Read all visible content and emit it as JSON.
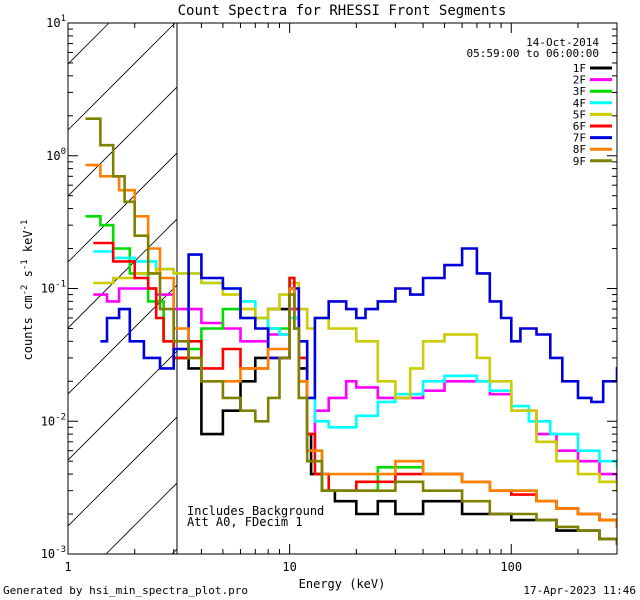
{
  "chart_data": {
    "type": "line",
    "title": "Count Spectra for RHESSI Front Segments",
    "xlabel": "Energy (keV)",
    "ylabel": "counts cm-2 s-1 keV-1",
    "xscale": "log",
    "yscale": "log",
    "xlim": [
      1,
      300
    ],
    "ylim": [
      0.001,
      10
    ],
    "x_tick_labels": [
      "1",
      "10",
      "100"
    ],
    "y_tick_labels": [
      {
        "base": "10",
        "exp": "-3"
      },
      {
        "base": "10",
        "exp": "-2"
      },
      {
        "base": "10",
        "exp": "-1"
      },
      {
        "base": "10",
        "exp": "0"
      },
      {
        "base": "10",
        "exp": "1"
      }
    ],
    "date_label": "14-Oct-2014",
    "time_range_label": "05:59:00 to 06:00:00",
    "excluded_region": {
      "from": 1,
      "to": 3,
      "description": "hatched"
    },
    "notes": [
      "Includes Background",
      "Att A0, FDecim 1"
    ],
    "series": [
      {
        "name": "1F",
        "color": "#000000",
        "points": [
          [
            3,
            0.03
          ],
          [
            3.5,
            0.025
          ],
          [
            4,
            0.008
          ],
          [
            5,
            0.012
          ],
          [
            6,
            0.02
          ],
          [
            7,
            0.03
          ],
          [
            8,
            0.07
          ],
          [
            10,
            0.1
          ],
          [
            10.5,
            0.06
          ],
          [
            11,
            0.025
          ],
          [
            12,
            0.008
          ],
          [
            12.5,
            0.004
          ],
          [
            14,
            0.003
          ],
          [
            16,
            0.0025
          ],
          [
            20,
            0.002
          ],
          [
            25,
            0.0025
          ],
          [
            30,
            0.002
          ],
          [
            40,
            0.0025
          ],
          [
            60,
            0.002
          ],
          [
            80,
            0.002
          ],
          [
            100,
            0.0018
          ],
          [
            130,
            0.0018
          ],
          [
            160,
            0.0015
          ],
          [
            200,
            0.0015
          ],
          [
            250,
            0.0013
          ],
          [
            300,
            0.0012
          ]
        ]
      },
      {
        "name": "2F",
        "color": "#ff00ff",
        "points": [
          [
            1.3,
            0.09
          ],
          [
            1.5,
            0.08
          ],
          [
            1.7,
            0.1
          ],
          [
            2,
            0.1
          ],
          [
            2.5,
            0.09
          ],
          [
            3,
            0.07
          ],
          [
            4,
            0.055
          ],
          [
            5,
            0.05
          ],
          [
            6,
            0.04
          ],
          [
            8,
            0.045
          ],
          [
            10,
            0.07
          ],
          [
            11,
            0.02
          ],
          [
            12,
            0.006
          ],
          [
            13,
            0.012
          ],
          [
            15,
            0.015
          ],
          [
            18,
            0.02
          ],
          [
            20,
            0.018
          ],
          [
            25,
            0.015
          ],
          [
            30,
            0.015
          ],
          [
            40,
            0.017
          ],
          [
            50,
            0.02
          ],
          [
            60,
            0.02
          ],
          [
            80,
            0.016
          ],
          [
            100,
            0.012
          ],
          [
            130,
            0.008
          ],
          [
            160,
            0.006
          ],
          [
            200,
            0.005
          ],
          [
            250,
            0.004
          ],
          [
            300,
            0.0035
          ]
        ]
      },
      {
        "name": "3F",
        "color": "#00dd00",
        "points": [
          [
            1.2,
            0.35
          ],
          [
            1.4,
            0.3
          ],
          [
            1.6,
            0.2
          ],
          [
            1.9,
            0.13
          ],
          [
            2.3,
            0.08
          ],
          [
            2.7,
            0.04
          ],
          [
            3,
            0.03
          ],
          [
            3.5,
            0.035
          ],
          [
            4,
            0.05
          ],
          [
            5,
            0.07
          ],
          [
            6,
            0.06
          ],
          [
            8,
            0.05
          ],
          [
            10,
            0.12
          ],
          [
            10.5,
            0.05
          ],
          [
            11,
            0.02
          ],
          [
            12,
            0.006
          ],
          [
            14,
            0.003
          ],
          [
            20,
            0.003
          ],
          [
            25,
            0.0045
          ],
          [
            40,
            0.004
          ],
          [
            60,
            0.0035
          ],
          [
            80,
            0.003
          ],
          [
            100,
            0.003
          ],
          [
            130,
            0.0025
          ],
          [
            160,
            0.0022
          ],
          [
            200,
            0.002
          ],
          [
            250,
            0.0018
          ],
          [
            300,
            0.0016
          ]
        ]
      },
      {
        "name": "4F",
        "color": "#00ffff",
        "points": [
          [
            1.3,
            0.19
          ],
          [
            1.6,
            0.17
          ],
          [
            2,
            0.16
          ],
          [
            2.5,
            0.14
          ],
          [
            3,
            0.13
          ],
          [
            4,
            0.11
          ],
          [
            5,
            0.1
          ],
          [
            6,
            0.08
          ],
          [
            7,
            0.06
          ],
          [
            8,
            0.05
          ],
          [
            9,
            0.045
          ],
          [
            10,
            0.06
          ],
          [
            11,
            0.03
          ],
          [
            12,
            0.015
          ],
          [
            13,
            0.01
          ],
          [
            15,
            0.009
          ],
          [
            20,
            0.011
          ],
          [
            25,
            0.014
          ],
          [
            30,
            0.016
          ],
          [
            40,
            0.02
          ],
          [
            50,
            0.022
          ],
          [
            60,
            0.022
          ],
          [
            70,
            0.02
          ],
          [
            80,
            0.017
          ],
          [
            100,
            0.013
          ],
          [
            120,
            0.01
          ],
          [
            150,
            0.008
          ],
          [
            200,
            0.006
          ],
          [
            250,
            0.005
          ],
          [
            300,
            0.0045
          ]
        ]
      },
      {
        "name": "5F",
        "color": "#cccc00",
        "points": [
          [
            1.3,
            0.11
          ],
          [
            1.6,
            0.12
          ],
          [
            2,
            0.13
          ],
          [
            2.5,
            0.14
          ],
          [
            3,
            0.13
          ],
          [
            4,
            0.11
          ],
          [
            5,
            0.09
          ],
          [
            6,
            0.07
          ],
          [
            7,
            0.06
          ],
          [
            8,
            0.07
          ],
          [
            9,
            0.09
          ],
          [
            10,
            0.11
          ],
          [
            11,
            0.07
          ],
          [
            12,
            0.05
          ],
          [
            13,
            0.06
          ],
          [
            15,
            0.05
          ],
          [
            18,
            0.05
          ],
          [
            20,
            0.04
          ],
          [
            25,
            0.02
          ],
          [
            30,
            0.015
          ],
          [
            35,
            0.025
          ],
          [
            40,
            0.04
          ],
          [
            50,
            0.045
          ],
          [
            60,
            0.045
          ],
          [
            70,
            0.03
          ],
          [
            80,
            0.02
          ],
          [
            100,
            0.012
          ],
          [
            130,
            0.007
          ],
          [
            160,
            0.005
          ],
          [
            200,
            0.004
          ],
          [
            250,
            0.0035
          ],
          [
            300,
            0.003
          ]
        ]
      },
      {
        "name": "6F",
        "color": "#ff0000",
        "points": [
          [
            1.3,
            0.22
          ],
          [
            1.6,
            0.16
          ],
          [
            2,
            0.12
          ],
          [
            2.3,
            0.1
          ],
          [
            2.5,
            0.06
          ],
          [
            2.7,
            0.04
          ],
          [
            3,
            0.03
          ],
          [
            3.5,
            0.04
          ],
          [
            4,
            0.025
          ],
          [
            5,
            0.035
          ],
          [
            6,
            0.025
          ],
          [
            8,
            0.03
          ],
          [
            10,
            0.12
          ],
          [
            10.5,
            0.07
          ],
          [
            11,
            0.03
          ],
          [
            12,
            0.008
          ],
          [
            13,
            0.004
          ],
          [
            15,
            0.003
          ],
          [
            20,
            0.0035
          ],
          [
            30,
            0.004
          ],
          [
            40,
            0.004
          ],
          [
            60,
            0.0035
          ],
          [
            80,
            0.003
          ],
          [
            100,
            0.0028
          ],
          [
            130,
            0.0025
          ],
          [
            160,
            0.0022
          ],
          [
            200,
            0.002
          ],
          [
            250,
            0.0018
          ],
          [
            300,
            0.0016
          ]
        ]
      },
      {
        "name": "7F",
        "color": "#0000dd",
        "points": [
          [
            1.4,
            0.04
          ],
          [
            1.5,
            0.06
          ],
          [
            1.7,
            0.07
          ],
          [
            1.9,
            0.04
          ],
          [
            2.2,
            0.03
          ],
          [
            2.6,
            0.025
          ],
          [
            3,
            0.035
          ],
          [
            3.5,
            0.18
          ],
          [
            4,
            0.12
          ],
          [
            5,
            0.1
          ],
          [
            6,
            0.06
          ],
          [
            7,
            0.05
          ],
          [
            8,
            0.03
          ],
          [
            10,
            0.1
          ],
          [
            11,
            0.04
          ],
          [
            12,
            0.015
          ],
          [
            13,
            0.06
          ],
          [
            15,
            0.08
          ],
          [
            18,
            0.07
          ],
          [
            20,
            0.06
          ],
          [
            22,
            0.07
          ],
          [
            25,
            0.08
          ],
          [
            30,
            0.1
          ],
          [
            35,
            0.09
          ],
          [
            40,
            0.12
          ],
          [
            50,
            0.15
          ],
          [
            60,
            0.2
          ],
          [
            70,
            0.13
          ],
          [
            80,
            0.08
          ],
          [
            90,
            0.06
          ],
          [
            100,
            0.04
          ],
          [
            110,
            0.05
          ],
          [
            130,
            0.045
          ],
          [
            150,
            0.03
          ],
          [
            170,
            0.02
          ],
          [
            200,
            0.015
          ],
          [
            230,
            0.014
          ],
          [
            260,
            0.02
          ],
          [
            300,
            0.025
          ]
        ]
      },
      {
        "name": "8F",
        "color": "#ff8000",
        "points": [
          [
            1.2,
            0.85
          ],
          [
            1.4,
            0.7
          ],
          [
            1.7,
            0.55
          ],
          [
            2,
            0.35
          ],
          [
            2.3,
            0.2
          ],
          [
            2.6,
            0.12
          ],
          [
            3,
            0.05
          ],
          [
            3.5,
            0.03
          ],
          [
            4,
            0.02
          ],
          [
            5,
            0.02
          ],
          [
            6,
            0.025
          ],
          [
            8,
            0.035
          ],
          [
            10,
            0.1
          ],
          [
            10.5,
            0.05
          ],
          [
            11,
            0.02
          ],
          [
            12,
            0.006
          ],
          [
            14,
            0.004
          ],
          [
            20,
            0.004
          ],
          [
            30,
            0.005
          ],
          [
            40,
            0.004
          ],
          [
            60,
            0.0035
          ],
          [
            80,
            0.003
          ],
          [
            100,
            0.003
          ],
          [
            130,
            0.0025
          ],
          [
            160,
            0.0022
          ],
          [
            200,
            0.002
          ],
          [
            250,
            0.0018
          ],
          [
            300,
            0.0016
          ]
        ]
      },
      {
        "name": "9F",
        "color": "#808000",
        "points": [
          [
            1.2,
            1.9
          ],
          [
            1.4,
            1.2
          ],
          [
            1.6,
            0.7
          ],
          [
            1.8,
            0.45
          ],
          [
            2,
            0.25
          ],
          [
            2.3,
            0.13
          ],
          [
            2.6,
            0.07
          ],
          [
            3,
            0.04
          ],
          [
            3.5,
            0.03
          ],
          [
            4,
            0.02
          ],
          [
            5,
            0.015
          ],
          [
            6,
            0.012
          ],
          [
            7,
            0.01
          ],
          [
            8,
            0.015
          ],
          [
            9,
            0.03
          ],
          [
            10,
            0.09
          ],
          [
            10.5,
            0.05
          ],
          [
            11,
            0.015
          ],
          [
            12,
            0.005
          ],
          [
            14,
            0.003
          ],
          [
            20,
            0.003
          ],
          [
            30,
            0.0035
          ],
          [
            40,
            0.003
          ],
          [
            60,
            0.0025
          ],
          [
            80,
            0.002
          ],
          [
            100,
            0.002
          ],
          [
            130,
            0.0018
          ],
          [
            160,
            0.0016
          ],
          [
            200,
            0.0015
          ],
          [
            250,
            0.0013
          ],
          [
            300,
            0.0012
          ]
        ]
      }
    ]
  },
  "footer": {
    "generated_by": "Generated by hsi_min_spectra_plot.pro",
    "created_at": "17-Apr-2023 11:46"
  }
}
